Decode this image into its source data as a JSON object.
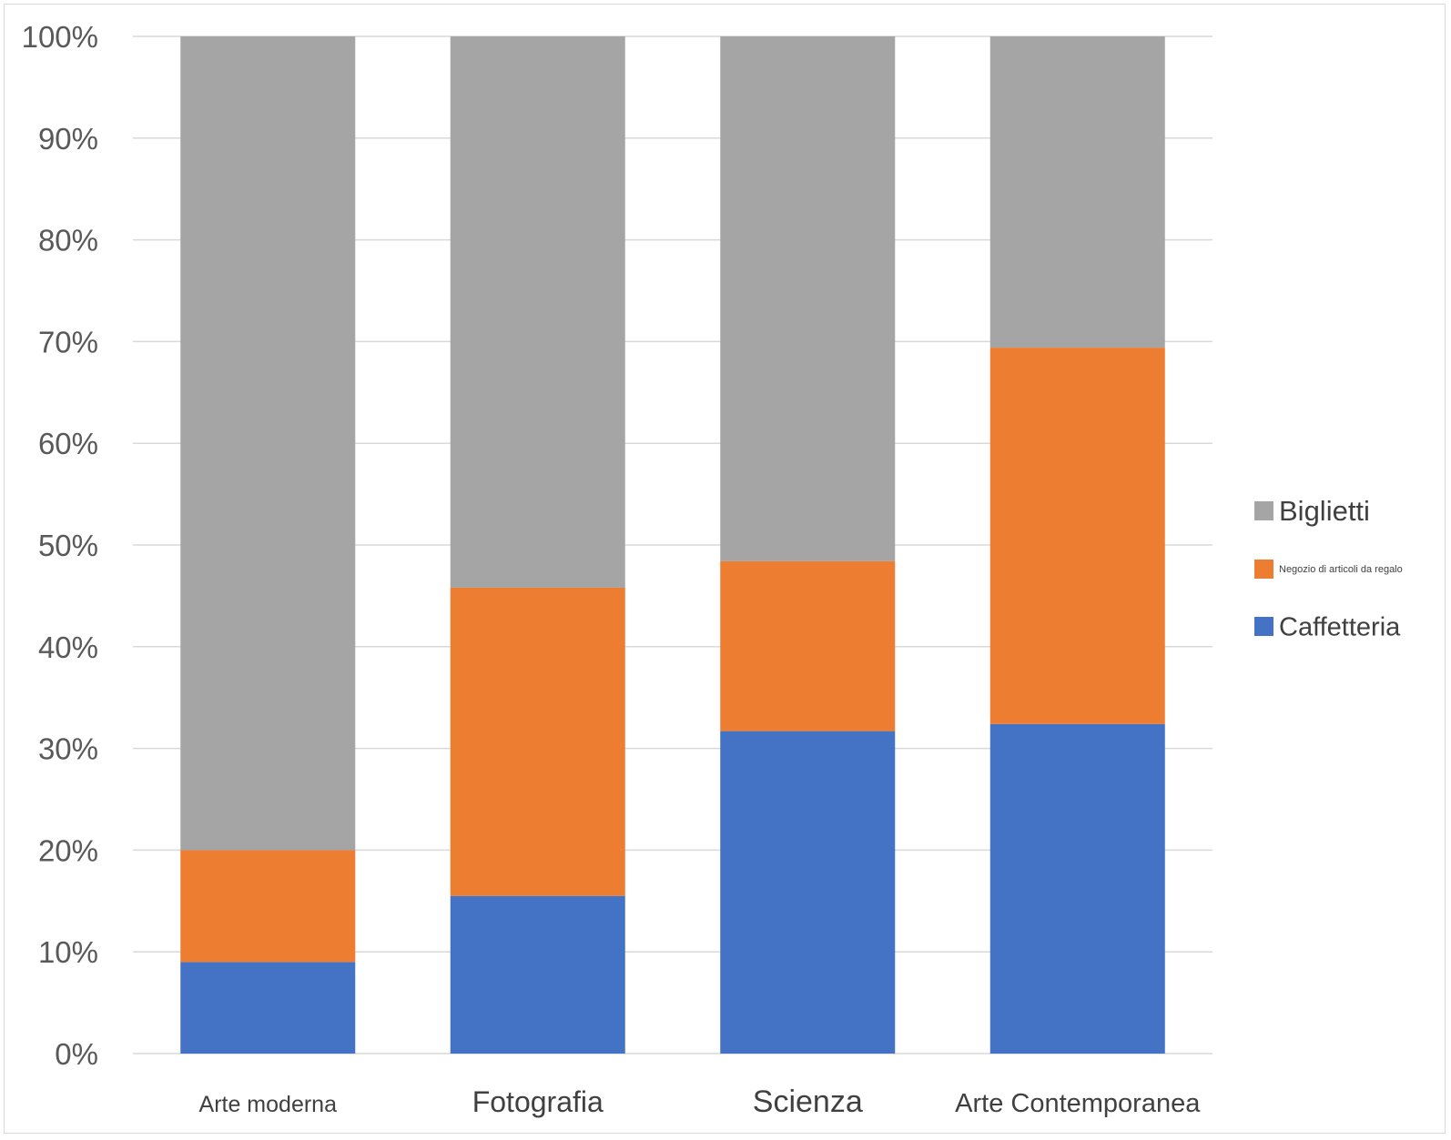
{
  "chart_data": {
    "type": "bar",
    "stacked": "percent",
    "categories": [
      "Arte moderna",
      "Fotografia",
      "Scienza",
      "Arte Contemporanea"
    ],
    "series": [
      {
        "name": "Caffetteria",
        "color": "#4472C4",
        "values": [
          9,
          15.5,
          31.7,
          32.4
        ]
      },
      {
        "name": "Negozio di articoli da regalo",
        "color": "#ED7D31",
        "values": [
          11,
          30.3,
          16.7,
          37
        ]
      },
      {
        "name": "Biglietti",
        "color": "#A5A5A5",
        "values": [
          80,
          54.2,
          51.6,
          30.6
        ]
      }
    ],
    "yticks": [
      "0%",
      "10%",
      "20%",
      "30%",
      "40%",
      "50%",
      "60%",
      "70%",
      "80%",
      "90%",
      "100%"
    ],
    "ylim": [
      0,
      100
    ],
    "grid": true,
    "legend": {
      "placement": "right",
      "order": [
        "Biglietti",
        "Negozio di articoli da regalo",
        "Caffetteria"
      ]
    }
  }
}
